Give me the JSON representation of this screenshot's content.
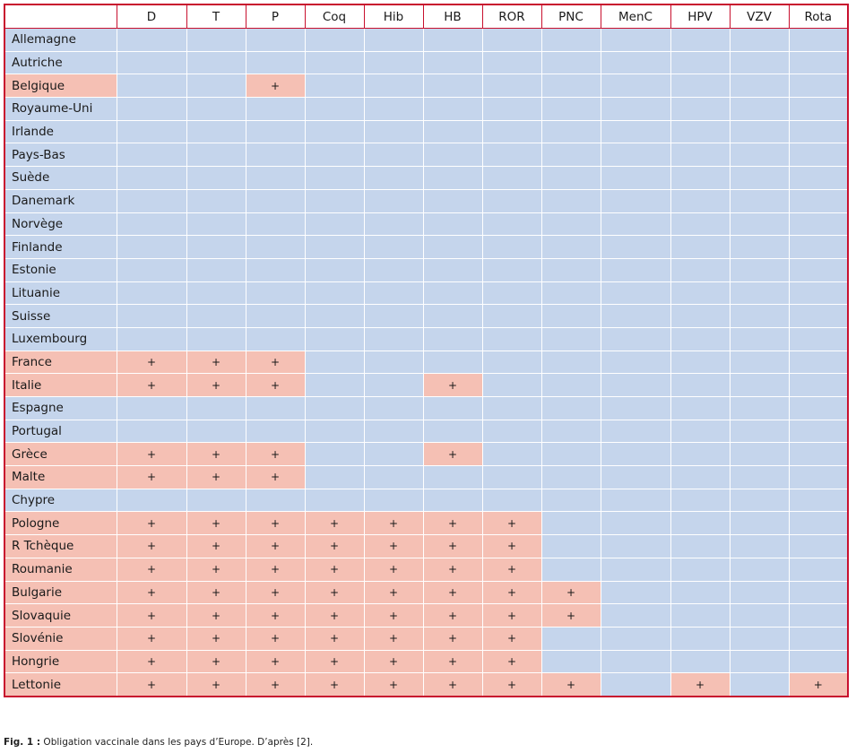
{
  "table": {
    "columns": [
      "D",
      "T",
      "P",
      "Coq",
      "Hib",
      "HB",
      "ROR",
      "PNC",
      "MenC",
      "HPV",
      "VZV",
      "Rota"
    ],
    "mark_symbol": "+",
    "colors": {
      "highlight": "#f5c0b4",
      "default": "#c5d5ec",
      "border": "#c8102e"
    },
    "rows": [
      {
        "country": "Allemagne",
        "country_highlight": false,
        "marks": []
      },
      {
        "country": "Autriche",
        "country_highlight": false,
        "marks": []
      },
      {
        "country": "Belgique",
        "country_highlight": true,
        "marks": [
          "P"
        ]
      },
      {
        "country": "Royaume-Uni",
        "country_highlight": false,
        "marks": []
      },
      {
        "country": "Irlande",
        "country_highlight": false,
        "marks": []
      },
      {
        "country": "Pays-Bas",
        "country_highlight": false,
        "marks": []
      },
      {
        "country": "Suède",
        "country_highlight": false,
        "marks": []
      },
      {
        "country": "Danemark",
        "country_highlight": false,
        "marks": []
      },
      {
        "country": "Norvège",
        "country_highlight": false,
        "marks": []
      },
      {
        "country": "Finlande",
        "country_highlight": false,
        "marks": []
      },
      {
        "country": "Estonie",
        "country_highlight": false,
        "marks": []
      },
      {
        "country": "Lituanie",
        "country_highlight": false,
        "marks": []
      },
      {
        "country": "Suisse",
        "country_highlight": false,
        "marks": []
      },
      {
        "country": "Luxembourg",
        "country_highlight": false,
        "marks": []
      },
      {
        "country": "France",
        "country_highlight": true,
        "marks": [
          "D",
          "T",
          "P"
        ]
      },
      {
        "country": "Italie",
        "country_highlight": true,
        "marks": [
          "D",
          "T",
          "P",
          "HB"
        ]
      },
      {
        "country": "Espagne",
        "country_highlight": false,
        "marks": []
      },
      {
        "country": "Portugal",
        "country_highlight": false,
        "marks": []
      },
      {
        "country": "Grèce",
        "country_highlight": true,
        "marks": [
          "D",
          "T",
          "P",
          "HB"
        ]
      },
      {
        "country": "Malte",
        "country_highlight": true,
        "marks": [
          "D",
          "T",
          "P"
        ]
      },
      {
        "country": "Chypre",
        "country_highlight": false,
        "marks": []
      },
      {
        "country": "Pologne",
        "country_highlight": true,
        "marks": [
          "D",
          "T",
          "P",
          "Coq",
          "Hib",
          "HB",
          "ROR"
        ]
      },
      {
        "country": "R Tchèque",
        "country_highlight": true,
        "marks": [
          "D",
          "T",
          "P",
          "Coq",
          "Hib",
          "HB",
          "ROR"
        ]
      },
      {
        "country": "Roumanie",
        "country_highlight": true,
        "marks": [
          "D",
          "T",
          "P",
          "Coq",
          "Hib",
          "HB",
          "ROR"
        ]
      },
      {
        "country": "Bulgarie",
        "country_highlight": true,
        "marks": [
          "D",
          "T",
          "P",
          "Coq",
          "Hib",
          "HB",
          "ROR",
          "PNC"
        ]
      },
      {
        "country": "Slovaquie",
        "country_highlight": true,
        "marks": [
          "D",
          "T",
          "P",
          "Coq",
          "Hib",
          "HB",
          "ROR",
          "PNC"
        ]
      },
      {
        "country": "Slovénie",
        "country_highlight": true,
        "marks": [
          "D",
          "T",
          "P",
          "Coq",
          "Hib",
          "HB",
          "ROR"
        ]
      },
      {
        "country": "Hongrie",
        "country_highlight": true,
        "marks": [
          "D",
          "T",
          "P",
          "Coq",
          "Hib",
          "HB",
          "ROR"
        ]
      },
      {
        "country": "Lettonie",
        "country_highlight": true,
        "marks": [
          "D",
          "T",
          "P",
          "Coq",
          "Hib",
          "HB",
          "ROR",
          "PNC",
          "HPV",
          "Rota"
        ]
      }
    ]
  },
  "caption": {
    "label": "Fig. 1 :",
    "text": " Obligation vaccinale dans les pays d’Europe. D’après [2]."
  }
}
